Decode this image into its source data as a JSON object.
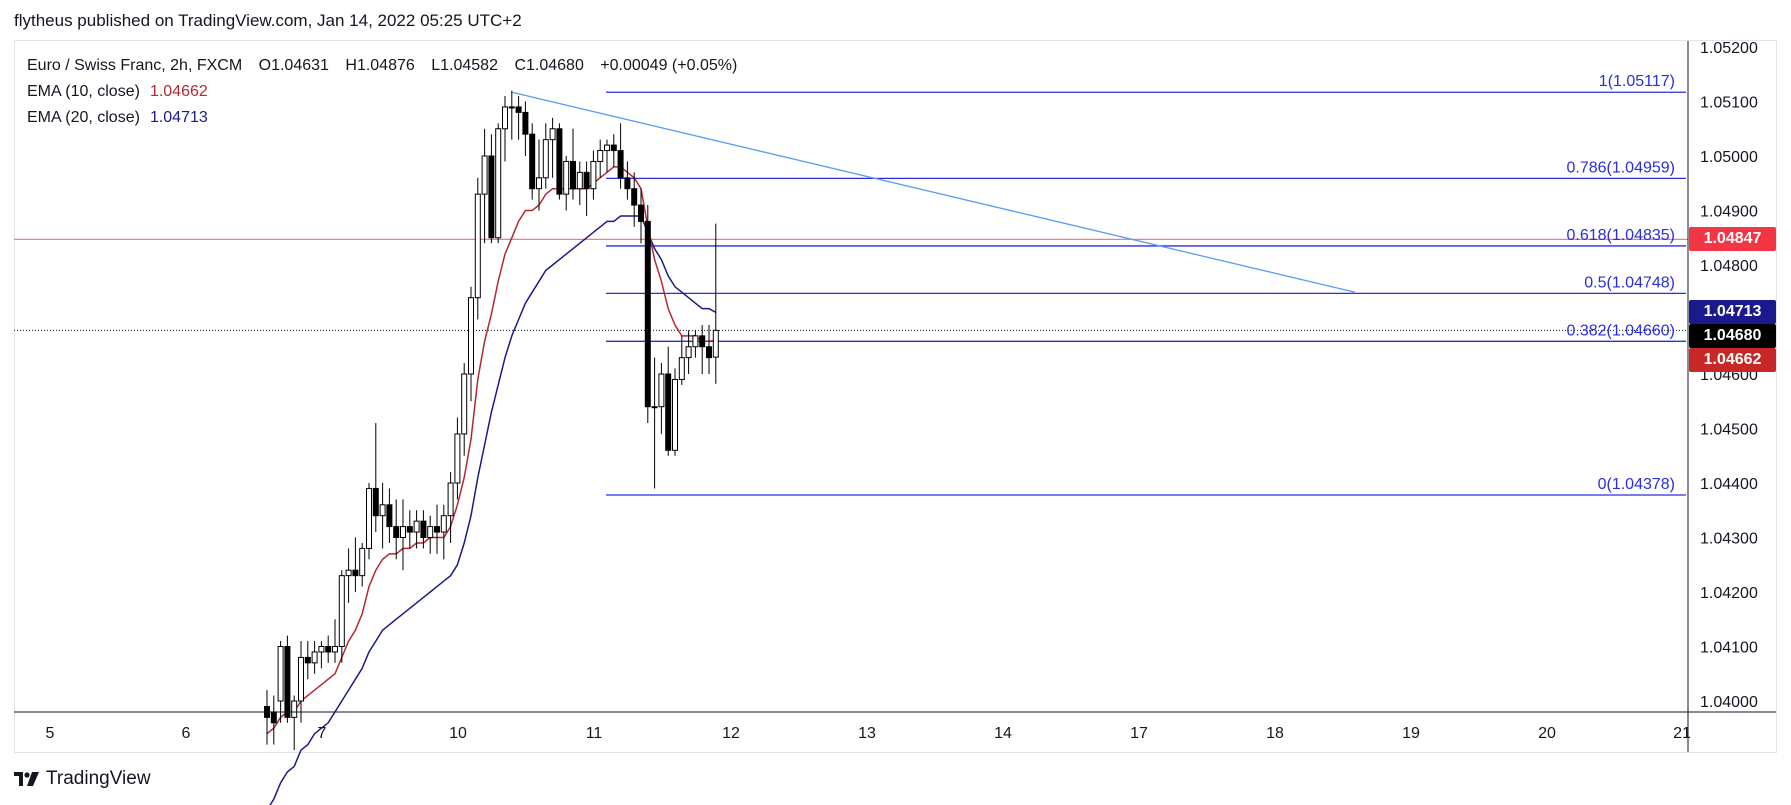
{
  "header": {
    "publisher_line": "flytheus published on TradingView.com, Jan 14, 2022 05:25 UTC+2"
  },
  "legend": {
    "symbol": "Euro / Swiss Franc, 2h, FXCM",
    "o_label": "O",
    "o_value": "1.04631",
    "h_label": "H",
    "h_value": "1.04876",
    "l_label": "L",
    "l_value": "1.04582",
    "c_label": "C",
    "c_value": "1.04680",
    "change": "+0.00049 (+0.05%)",
    "ema10_name": "EMA (10, close)",
    "ema10_value": "1.04662",
    "ema20_name": "EMA (20, close)",
    "ema20_value": "1.04713"
  },
  "footer": {
    "brand": "TradingView"
  },
  "colors": {
    "up_candle": "#ffffff",
    "down_candle": "#000000",
    "candle_border": "#000000",
    "ema10": "#b22833",
    "ema20": "#1a1a8c",
    "fib": "#2a2ee0",
    "trendline": "#5b9cf5",
    "horizontal_line": "#f77c80",
    "tag_red": "#f23645",
    "tag_ema20": "#1a1a8c",
    "tag_close": "#000000",
    "tag_ema10": "#c62828"
  },
  "chart_data": {
    "type": "candlestick",
    "y_axis": {
      "min": 1.0396,
      "max": 1.0522,
      "ticks": [
        "1.05200",
        "1.05100",
        "1.05000",
        "1.04900",
        "1.04800",
        "1.04600",
        "1.04500",
        "1.04400",
        "1.04300",
        "1.04200",
        "1.04100",
        "1.04000"
      ],
      "tick_values": [
        1.052,
        1.051,
        1.05,
        1.049,
        1.048,
        1.046,
        1.045,
        1.044,
        1.043,
        1.042,
        1.041,
        1.04
      ]
    },
    "x_axis": {
      "labels": [
        "5",
        "6",
        "7",
        "10",
        "11",
        "12",
        "13",
        "14",
        "17",
        "18",
        "19",
        "20",
        "21"
      ]
    },
    "candles": [
      {
        "o": 1.0399,
        "h": 1.0402,
        "l": 1.0392,
        "c": 1.0397
      },
      {
        "o": 1.0398,
        "h": 1.0401,
        "l": 1.0392,
        "c": 1.0396
      },
      {
        "o": 1.04,
        "h": 1.0411,
        "l": 1.0396,
        "c": 1.041
      },
      {
        "o": 1.041,
        "h": 1.0412,
        "l": 1.0396,
        "c": 1.0397
      },
      {
        "o": 1.0397,
        "h": 1.0401,
        "l": 1.0391,
        "c": 1.04
      },
      {
        "o": 1.04,
        "h": 1.0411,
        "l": 1.0396,
        "c": 1.0408
      },
      {
        "o": 1.0408,
        "h": 1.0411,
        "l": 1.0404,
        "c": 1.0407
      },
      {
        "o": 1.0407,
        "h": 1.0411,
        "l": 1.0405,
        "c": 1.0409
      },
      {
        "o": 1.0409,
        "h": 1.0411,
        "l": 1.0406,
        "c": 1.041
      },
      {
        "o": 1.041,
        "h": 1.0412,
        "l": 1.0407,
        "c": 1.0409
      },
      {
        "o": 1.0409,
        "h": 1.0415,
        "l": 1.0407,
        "c": 1.041
      },
      {
        "o": 1.041,
        "h": 1.0424,
        "l": 1.0407,
        "c": 1.0423
      },
      {
        "o": 1.0423,
        "h": 1.0428,
        "l": 1.0418,
        "c": 1.0424
      },
      {
        "o": 1.0424,
        "h": 1.043,
        "l": 1.042,
        "c": 1.0423
      },
      {
        "o": 1.0423,
        "h": 1.0429,
        "l": 1.0421,
        "c": 1.0428
      },
      {
        "o": 1.0428,
        "h": 1.044,
        "l": 1.0426,
        "c": 1.0439
      },
      {
        "o": 1.0439,
        "h": 1.0451,
        "l": 1.0431,
        "c": 1.0434
      },
      {
        "o": 1.0434,
        "h": 1.044,
        "l": 1.0428,
        "c": 1.0436
      },
      {
        "o": 1.0436,
        "h": 1.0439,
        "l": 1.0429,
        "c": 1.0432
      },
      {
        "o": 1.0432,
        "h": 1.0437,
        "l": 1.0426,
        "c": 1.043
      },
      {
        "o": 1.043,
        "h": 1.0437,
        "l": 1.0424,
        "c": 1.0432
      },
      {
        "o": 1.0432,
        "h": 1.0435,
        "l": 1.0428,
        "c": 1.0431
      },
      {
        "o": 1.0431,
        "h": 1.0435,
        "l": 1.0428,
        "c": 1.0433
      },
      {
        "o": 1.0433,
        "h": 1.0435,
        "l": 1.0428,
        "c": 1.043
      },
      {
        "o": 1.043,
        "h": 1.0434,
        "l": 1.0427,
        "c": 1.0432
      },
      {
        "o": 1.0432,
        "h": 1.0436,
        "l": 1.0427,
        "c": 1.0431
      },
      {
        "o": 1.0431,
        "h": 1.0436,
        "l": 1.0426,
        "c": 1.0434
      },
      {
        "o": 1.0434,
        "h": 1.0442,
        "l": 1.0429,
        "c": 1.044
      },
      {
        "o": 1.044,
        "h": 1.0452,
        "l": 1.0437,
        "c": 1.0449
      },
      {
        "o": 1.0449,
        "h": 1.0462,
        "l": 1.0445,
        "c": 1.046
      },
      {
        "o": 1.046,
        "h": 1.0476,
        "l": 1.0455,
        "c": 1.0474
      },
      {
        "o": 1.0474,
        "h": 1.0496,
        "l": 1.047,
        "c": 1.0493
      },
      {
        "o": 1.0493,
        "h": 1.0505,
        "l": 1.0484,
        "c": 1.05
      },
      {
        "o": 1.05,
        "h": 1.0504,
        "l": 1.0484,
        "c": 1.0485
      },
      {
        "o": 1.0485,
        "h": 1.0506,
        "l": 1.0484,
        "c": 1.0505
      },
      {
        "o": 1.0505,
        "h": 1.0511,
        "l": 1.0499,
        "c": 1.0509
      },
      {
        "o": 1.0509,
        "h": 1.0512,
        "l": 1.0503,
        "c": 1.0509
      },
      {
        "o": 1.0509,
        "h": 1.0511,
        "l": 1.0503,
        "c": 1.0508
      },
      {
        "o": 1.0508,
        "h": 1.051,
        "l": 1.05,
        "c": 1.0504
      },
      {
        "o": 1.0504,
        "h": 1.0506,
        "l": 1.0492,
        "c": 1.0494
      },
      {
        "o": 1.0494,
        "h": 1.0503,
        "l": 1.049,
        "c": 1.0496
      },
      {
        "o": 1.0496,
        "h": 1.0506,
        "l": 1.0494,
        "c": 1.0503
      },
      {
        "o": 1.0503,
        "h": 1.0507,
        "l": 1.0496,
        "c": 1.0505
      },
      {
        "o": 1.0505,
        "h": 1.0506,
        "l": 1.0492,
        "c": 1.0493
      },
      {
        "o": 1.0493,
        "h": 1.05,
        "l": 1.049,
        "c": 1.0499
      },
      {
        "o": 1.0499,
        "h": 1.0505,
        "l": 1.0492,
        "c": 1.0494
      },
      {
        "o": 1.0494,
        "h": 1.0499,
        "l": 1.0491,
        "c": 1.0497
      },
      {
        "o": 1.0497,
        "h": 1.0499,
        "l": 1.0489,
        "c": 1.0494
      },
      {
        "o": 1.0494,
        "h": 1.0501,
        "l": 1.0492,
        "c": 1.0499
      },
      {
        "o": 1.0499,
        "h": 1.0503,
        "l": 1.0496,
        "c": 1.0501
      },
      {
        "o": 1.0501,
        "h": 1.0503,
        "l": 1.0497,
        "c": 1.0502
      },
      {
        "o": 1.0502,
        "h": 1.0504,
        "l": 1.0498,
        "c": 1.0501
      },
      {
        "o": 1.0501,
        "h": 1.0506,
        "l": 1.0494,
        "c": 1.0496
      },
      {
        "o": 1.0496,
        "h": 1.0499,
        "l": 1.0492,
        "c": 1.0494
      },
      {
        "o": 1.0494,
        "h": 1.0497,
        "l": 1.0487,
        "c": 1.0491
      },
      {
        "o": 1.0491,
        "h": 1.0494,
        "l": 1.0484,
        "c": 1.0488
      },
      {
        "o": 1.0488,
        "h": 1.0491,
        "l": 1.0451,
        "c": 1.0454
      },
      {
        "o": 1.0454,
        "h": 1.0463,
        "l": 1.0439,
        "c": 1.0454
      },
      {
        "o": 1.0454,
        "h": 1.0462,
        "l": 1.0449,
        "c": 1.046
      },
      {
        "o": 1.046,
        "h": 1.0465,
        "l": 1.0445,
        "c": 1.0446
      },
      {
        "o": 1.0446,
        "h": 1.0461,
        "l": 1.0445,
        "c": 1.0459
      },
      {
        "o": 1.0459,
        "h": 1.0467,
        "l": 1.0458,
        "c": 1.0463
      },
      {
        "o": 1.0463,
        "h": 1.0468,
        "l": 1.046,
        "c": 1.0465
      },
      {
        "o": 1.0465,
        "h": 1.0468,
        "l": 1.0463,
        "c": 1.0467
      },
      {
        "o": 1.0467,
        "h": 1.0469,
        "l": 1.046,
        "c": 1.0465
      },
      {
        "o": 1.0465,
        "h": 1.0469,
        "l": 1.046,
        "c": 1.0463
      },
      {
        "o": 1.04631,
        "h": 1.04876,
        "l": 1.04582,
        "c": 1.0468
      }
    ],
    "ema10": [
      1.0394,
      1.0395,
      1.0397,
      1.0398,
      1.0398,
      1.04,
      1.0401,
      1.0402,
      1.0403,
      1.0404,
      1.0405,
      1.0408,
      1.0411,
      1.0413,
      1.0416,
      1.0421,
      1.0424,
      1.0426,
      1.0427,
      1.0427,
      1.0428,
      1.0428,
      1.0429,
      1.0429,
      1.043,
      1.043,
      1.043,
      1.0432,
      1.0436,
      1.0441,
      1.0448,
      1.0459,
      1.0466,
      1.0471,
      1.0477,
      1.0482,
      1.0485,
      1.0488,
      1.049,
      1.049,
      1.0491,
      1.0493,
      1.0494,
      1.0494,
      1.0494,
      1.0494,
      1.0494,
      1.0494,
      1.0495,
      1.0496,
      1.0497,
      1.0498,
      1.0498,
      1.0497,
      1.0496,
      1.0494,
      1.0487,
      1.0481,
      1.0477,
      1.0472,
      1.0469,
      1.0467,
      1.0467,
      1.0467,
      1.0466,
      1.0466,
      1.04662
    ],
    "ema20": [
      1.038,
      1.0382,
      1.0385,
      1.0387,
      1.0388,
      1.0391,
      1.0392,
      1.0394,
      1.0395,
      1.0396,
      1.0398,
      1.04,
      1.0402,
      1.0404,
      1.0406,
      1.0409,
      1.0411,
      1.0413,
      1.0414,
      1.0415,
      1.0416,
      1.0417,
      1.0418,
      1.0419,
      1.042,
      1.0421,
      1.0422,
      1.0423,
      1.0425,
      1.0429,
      1.0434,
      1.0441,
      1.0447,
      1.0453,
      1.0458,
      1.0463,
      1.0467,
      1.047,
      1.0473,
      1.0475,
      1.0477,
      1.0479,
      1.048,
      1.0481,
      1.0482,
      1.0483,
      1.0484,
      1.0485,
      1.0486,
      1.0487,
      1.0488,
      1.0488,
      1.0489,
      1.0489,
      1.0489,
      1.0489,
      1.0486,
      1.0483,
      1.0481,
      1.0478,
      1.0476,
      1.0475,
      1.0474,
      1.0473,
      1.0472,
      1.0472,
      1.04713
    ],
    "fib_levels": [
      {
        "label": "1(1.05117)",
        "value": 1.05117
      },
      {
        "label": "0.786(1.04959)",
        "value": 1.04959
      },
      {
        "label": "0.618(1.04835)",
        "value": 1.04835
      },
      {
        "label": "0.5(1.04748)",
        "value": 1.04748
      },
      {
        "label": "0.382(1.04660)",
        "value": 1.0466
      },
      {
        "label": "0(1.04378)",
        "value": 1.04378
      }
    ],
    "trendline": {
      "from": {
        "bar": 36,
        "price": 1.05117
      },
      "to": {
        "bar": 160,
        "price": 1.0475
      }
    },
    "horizontal_line": 1.04847,
    "price_tags": [
      {
        "text": "1.04847",
        "value": 1.04847,
        "color": "#f23645"
      },
      {
        "text": "1.04713",
        "value": 1.04713,
        "color": "#1a1a8c"
      },
      {
        "text": "1.04680",
        "value": 1.0468,
        "color": "#000000"
      },
      {
        "text": "1.04662",
        "value": 1.04662,
        "color": "#c62828"
      }
    ]
  }
}
